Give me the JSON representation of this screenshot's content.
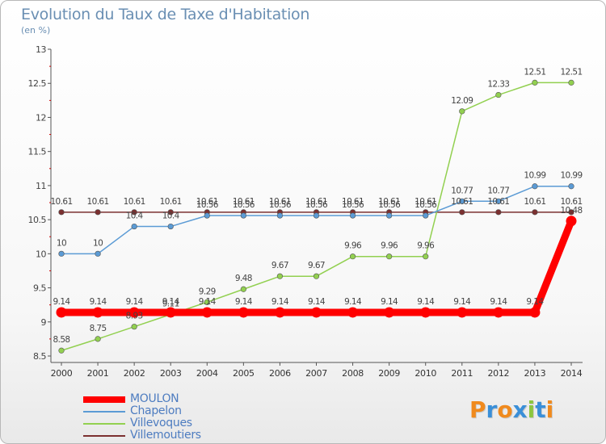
{
  "header": {
    "title": "Evolution du Taux de Taxe d'Habitation",
    "subtitle": "(en %)"
  },
  "chart_data": {
    "type": "line",
    "categories": [
      "2000",
      "2001",
      "2002",
      "2003",
      "2004",
      "2005",
      "2006",
      "2007",
      "2008",
      "2009",
      "2010",
      "2011",
      "2012",
      "2013",
      "2014"
    ],
    "ylim": [
      8.5,
      13
    ],
    "y_ticks": [
      "8.5",
      "9",
      "9.5",
      "10",
      "10.5",
      "11",
      "11.5",
      "12",
      "12.5",
      "13"
    ],
    "grid": false,
    "legend_position": "bottom-left",
    "series": [
      {
        "name": "MOULON",
        "color": "#ff0000",
        "values": [
          9.14,
          9.14,
          9.14,
          9.14,
          9.14,
          9.14,
          9.14,
          9.14,
          9.14,
          9.14,
          9.14,
          9.14,
          9.14,
          9.14,
          10.48
        ],
        "labels": [
          "9.14",
          "9.14",
          "9.14",
          "9.14",
          "9.14",
          "9.14",
          "9.14",
          "9.14",
          "9.14",
          "9.14",
          "9.14",
          "9.14",
          "9.14",
          "9.14",
          "10.48"
        ]
      },
      {
        "name": "Chapelon",
        "color": "#5b9bd5",
        "values": [
          10,
          10,
          10.4,
          10.4,
          10.56,
          10.56,
          10.56,
          10.56,
          10.56,
          10.56,
          10.56,
          10.77,
          10.77,
          10.99,
          10.99
        ],
        "labels": [
          "10",
          "10",
          "10.4",
          "10.4",
          "10.56",
          "10.56",
          "10.56",
          "10.56",
          "10.56",
          "10.56",
          "10.56",
          "10.77",
          "10.77",
          "10.99",
          "10.99"
        ]
      },
      {
        "name": "Villevoques",
        "color": "#92d050",
        "values": [
          8.58,
          8.75,
          8.93,
          9.11,
          9.29,
          9.48,
          9.67,
          9.67,
          9.96,
          9.96,
          9.96,
          12.09,
          12.33,
          12.51,
          12.51
        ],
        "labels": [
          "8.58",
          "8.75",
          "8.93",
          "9.11",
          "9.29",
          "9.48",
          "9.67",
          "9.67",
          "9.96",
          "9.96",
          "9.96",
          "12.09",
          "12.33",
          "12.51",
          "12.51"
        ]
      },
      {
        "name": "Villemoutiers",
        "color": "#7b3030",
        "values": [
          10.61,
          10.61,
          10.61,
          10.61,
          10.61,
          10.61,
          10.61,
          10.61,
          10.61,
          10.61,
          10.61,
          10.61,
          10.61,
          10.61,
          10.61
        ],
        "labels": [
          "10.61",
          "10.61",
          "10.61",
          "10.61",
          "10.61",
          "10.61",
          "10.61",
          "10.61",
          "10.61",
          "10.61",
          "10.61",
          "10.61",
          "10.61",
          "10.61",
          "10.61"
        ]
      }
    ]
  },
  "logo": {
    "text": "Proxiti",
    "letters": [
      "P",
      "r",
      "o",
      "x",
      "i",
      "t",
      "i"
    ],
    "colors": [
      "#f08a1d",
      "#3a8fd8",
      "#f08a1d",
      "#3a8fd8",
      "#8cc63f",
      "#3a8fd8",
      "#f08a1d"
    ]
  }
}
